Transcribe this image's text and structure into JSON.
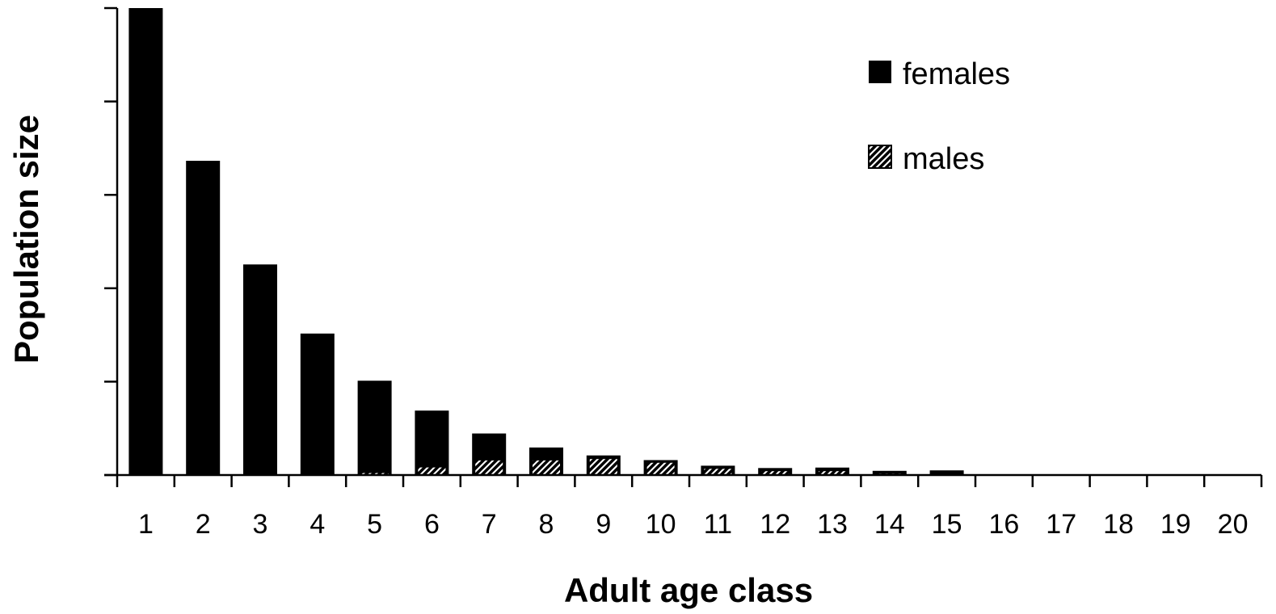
{
  "chart_data": {
    "type": "bar",
    "xlabel": "Adult age class",
    "ylabel": "Population size",
    "categories": [
      "1",
      "2",
      "3",
      "4",
      "5",
      "6",
      "7",
      "8",
      "9",
      "10",
      "11",
      "12",
      "13",
      "14",
      "15",
      "16",
      "17",
      "18",
      "19",
      "20"
    ],
    "ylim": [
      0,
      100
    ],
    "y_tick_values": [
      0,
      20,
      40,
      60,
      80,
      100
    ],
    "y_tick_labels_shown": false,
    "grid": false,
    "legend_position": "top-right",
    "series": [
      {
        "name": "females",
        "color": "#000000",
        "pattern": "solid",
        "values": [
          100,
          67.3,
          45.1,
          30.3,
          20.2,
          13.8,
          8.9,
          5.9,
          4.2,
          3.2,
          2.0,
          1.5,
          1.6,
          0.9,
          1.0,
          0,
          0,
          0,
          0,
          0
        ]
      },
      {
        "name": "males",
        "color": "#000000",
        "pattern": "diagonal-hatch",
        "values": [
          0,
          0,
          0,
          0,
          0.6,
          1.8,
          3.3,
          3.3,
          3.6,
          2.8,
          1.5,
          1.0,
          1.0,
          0.4,
          0.3,
          0,
          0,
          0,
          0,
          0
        ]
      }
    ]
  }
}
